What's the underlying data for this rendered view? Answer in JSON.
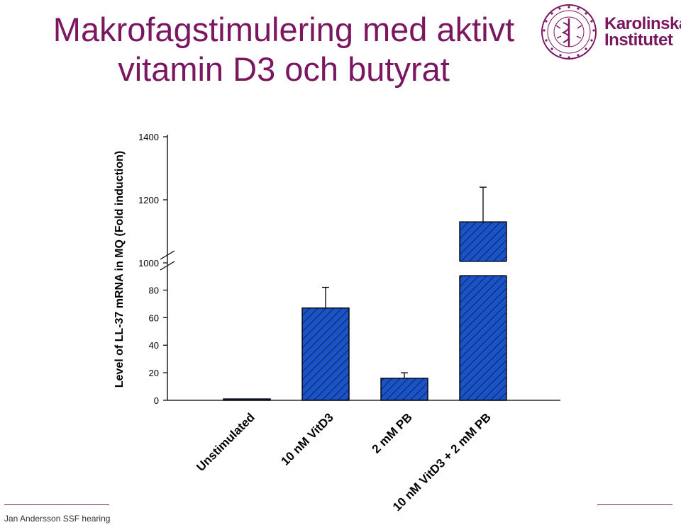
{
  "slide": {
    "title_line1": "Makrofagstimulering med aktivt",
    "title_line2": "vitamin D3 och butyrat",
    "footer": "Jan Andersson SSF hearing"
  },
  "logo": {
    "line1": "Karolinska",
    "line2": "Institutet",
    "seal_text": "KAROLINSKA INSTITUTET · ANNO 1810"
  },
  "colors": {
    "title": "#7a1760",
    "bar_fill": "#1a52c8",
    "hatch": "#0a1a3a",
    "axis": "#000000"
  },
  "chart_data": {
    "type": "bar",
    "ylabel": "Level of LL-37 mRNA in MQ (Fold induction)",
    "xlabel": "",
    "broken_axis": true,
    "y_lower_range": [
      0,
      90
    ],
    "y_upper_range": [
      1000,
      1400
    ],
    "y_ticks": [
      "0",
      "20",
      "40",
      "60",
      "80",
      "1000",
      "1200",
      "1400"
    ],
    "categories": [
      "Unstimulated",
      "10 nM VitD3",
      "2 mM PB",
      "10 nM VitD3 + 2 mM PB"
    ],
    "values": [
      1,
      67,
      16,
      1130
    ],
    "errors": [
      0,
      15,
      4,
      110
    ],
    "pattern": "diagonal hatch"
  }
}
